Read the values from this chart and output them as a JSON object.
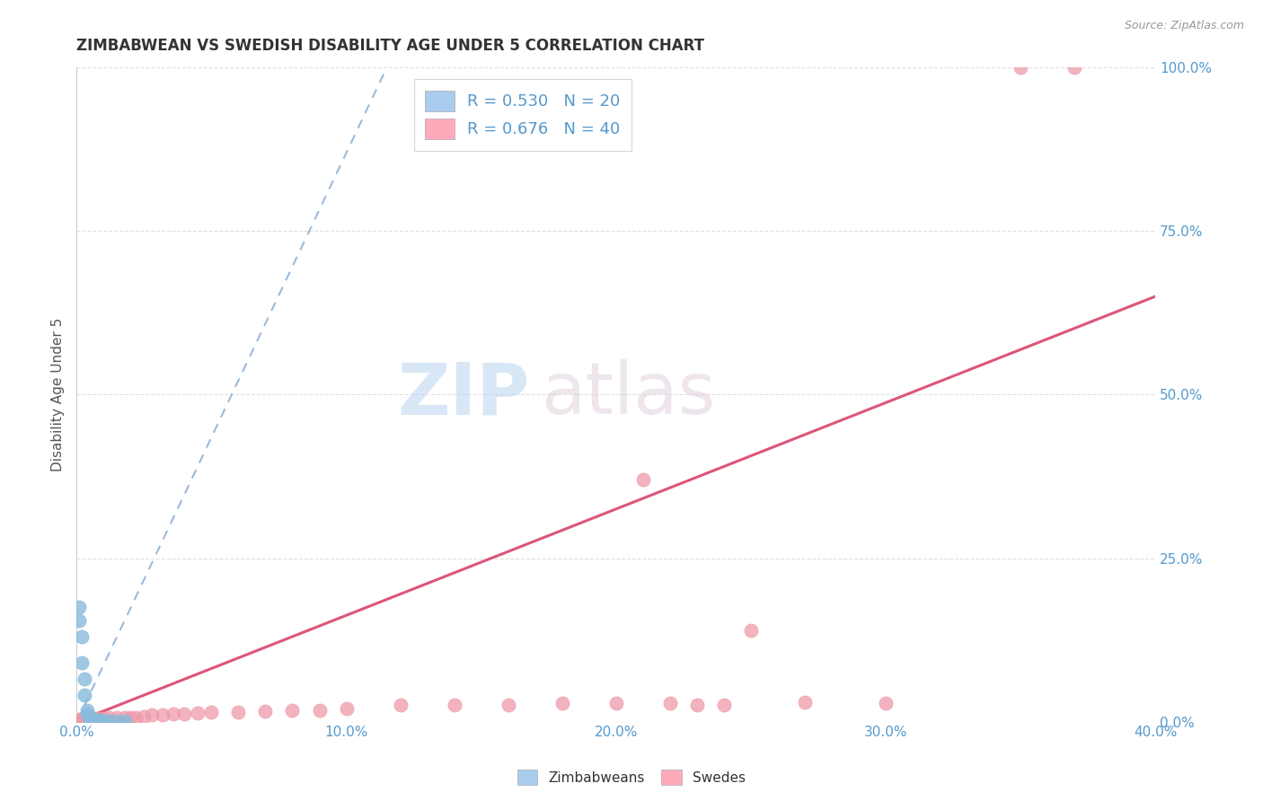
{
  "title": "ZIMBABWEAN VS SWEDISH DISABILITY AGE UNDER 5 CORRELATION CHART",
  "source_text": "Source: ZipAtlas.com",
  "ylabel": "Disability Age Under 5",
  "xmin": 0.0,
  "xmax": 0.4,
  "ymin": 0.0,
  "ymax": 1.0,
  "xticks": [
    0.0,
    0.1,
    0.2,
    0.3,
    0.4
  ],
  "xtick_labels": [
    "0.0%",
    "10.0%",
    "20.0%",
    "30.0%",
    "40.0%"
  ],
  "ytick_labels_right": [
    "0.0%",
    "25.0%",
    "50.0%",
    "75.0%",
    "100.0%"
  ],
  "yticks_right": [
    0.0,
    0.25,
    0.5,
    0.75,
    1.0
  ],
  "zim_legend_color": "#aaccee",
  "swe_legend_color": "#ffaabb",
  "zim_scatter_color": "#88bbdd",
  "swe_scatter_color": "#ee9aaa",
  "zim_line_color": "#99bbdd",
  "swe_line_color": "#dd5577",
  "zim_R": 0.53,
  "zim_N": 20,
  "swe_R": 0.676,
  "swe_N": 40,
  "legend_label_zim": "Zimbabweans",
  "legend_label_swe": "Swedes",
  "watermark_zip": "ZIP",
  "watermark_atlas": "atlas",
  "background_color": "#ffffff",
  "grid_color": "#e0e0e0",
  "tick_color": "#5599cc",
  "title_color": "#333333",
  "ylabel_color": "#555555",
  "zim_line_x0": 0.0,
  "zim_line_y0": 0.0,
  "zim_line_x1": 0.115,
  "zim_line_y1": 1.0,
  "swe_line_x0": 0.0,
  "swe_line_y0": 0.0,
  "swe_line_x1": 0.4,
  "swe_line_y1": 0.65,
  "zim_x": [
    0.001,
    0.001,
    0.002,
    0.002,
    0.003,
    0.003,
    0.004,
    0.004,
    0.005,
    0.005,
    0.005,
    0.006,
    0.006,
    0.007,
    0.008,
    0.009,
    0.01,
    0.012,
    0.015,
    0.018
  ],
  "zim_y": [
    0.155,
    0.175,
    0.09,
    0.13,
    0.04,
    0.065,
    0.018,
    0.012,
    0.007,
    0.004,
    0.003,
    0.003,
    0.002,
    0.002,
    0.002,
    0.001,
    0.001,
    0.001,
    0.001,
    0.001
  ],
  "swe_x": [
    0.001,
    0.002,
    0.003,
    0.004,
    0.005,
    0.006,
    0.007,
    0.008,
    0.01,
    0.012,
    0.015,
    0.018,
    0.02,
    0.022,
    0.025,
    0.028,
    0.032,
    0.036,
    0.04,
    0.045,
    0.05,
    0.06,
    0.07,
    0.08,
    0.09,
    0.1,
    0.12,
    0.14,
    0.16,
    0.18,
    0.2,
    0.21,
    0.22,
    0.23,
    0.24,
    0.25,
    0.27,
    0.3,
    0.35,
    0.37
  ],
  "swe_y": [
    0.003,
    0.004,
    0.004,
    0.004,
    0.004,
    0.005,
    0.005,
    0.005,
    0.005,
    0.006,
    0.006,
    0.006,
    0.007,
    0.007,
    0.008,
    0.01,
    0.01,
    0.012,
    0.012,
    0.013,
    0.014,
    0.015,
    0.016,
    0.018,
    0.018,
    0.02,
    0.025,
    0.025,
    0.025,
    0.028,
    0.028,
    0.37,
    0.028,
    0.025,
    0.025,
    0.14,
    0.03,
    0.028,
    1.0,
    1.0
  ],
  "title_fontsize": 12,
  "label_fontsize": 11,
  "tick_fontsize": 11,
  "legend_fontsize": 13
}
